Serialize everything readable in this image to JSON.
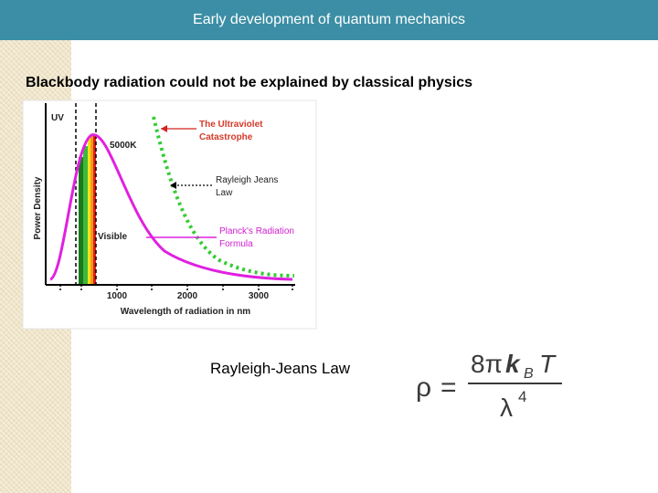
{
  "header": {
    "title": "Early development of quantum mechanics"
  },
  "heading": "Blackbody radiation could not be explained by classical physics",
  "figure": {
    "uv_label": "UV",
    "temperature_label": "5000K",
    "visible_label": "Visible",
    "y_axis_label": "Power Density",
    "x_axis_label": "Wavelength of radiation in nm",
    "x_ticks": [
      1000,
      2000,
      3000
    ],
    "ultraviolet_label": [
      "The Ultraviolet",
      "Catastrophe"
    ],
    "rayleigh_label": [
      "Rayleigh Jeans",
      "Law"
    ],
    "planck_label": [
      "Planck's  Radiation",
      "Formula"
    ]
  },
  "caption": "Rayleigh-Jeans Law",
  "formula": {
    "lhs": "ρ",
    "equals": "=",
    "coefficient": "8π",
    "k": "k",
    "subscript": "B",
    "t": "T",
    "lambda": "λ",
    "power": "4"
  }
}
